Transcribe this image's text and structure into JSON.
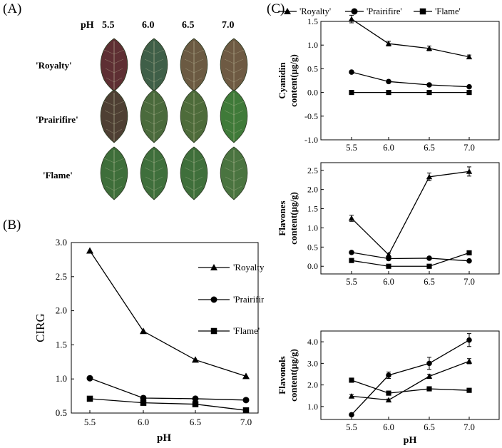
{
  "panels": {
    "a": "(A)",
    "b": "(B)",
    "c": "(C)"
  },
  "photo": {
    "ph_prefix": "pH",
    "ph_levels": [
      "5.5",
      "6.0",
      "6.5",
      "7.0"
    ],
    "cultivars": [
      "'Royalty'",
      "'Prairifire'",
      "'Flame'"
    ],
    "leaf_colors": [
      [
        "#5e2f33",
        "#3f5f48",
        "#6b5a42",
        "#6e5a43"
      ],
      [
        "#4e3f33",
        "#4a6a3c",
        "#4d6b3a",
        "#3f7a39"
      ],
      [
        "#3e6e3a",
        "#3f6f3c",
        "#3f6f3b",
        "#4a7440"
      ]
    ]
  },
  "chart_data": [
    {
      "id": "B",
      "type": "line",
      "title": "",
      "xlabel": "pH",
      "ylabel": "CIRG",
      "categories": [
        "5.5",
        "6.0",
        "6.5",
        "7.0"
      ],
      "ylim": [
        0.5,
        3.0
      ],
      "yticks": [
        "0.5",
        "1.0",
        "1.5",
        "2.0",
        "2.5",
        "3.0"
      ],
      "legend_position": "right",
      "series": [
        {
          "name": "'Royalty'",
          "marker": "triangle",
          "values": [
            2.88,
            1.7,
            1.28,
            1.04
          ]
        },
        {
          "name": "'Prairifire'",
          "marker": "circle",
          "values": [
            1.01,
            0.72,
            0.71,
            0.69
          ]
        },
        {
          "name": "'Flame'",
          "marker": "square",
          "values": [
            0.71,
            0.65,
            0.63,
            0.54
          ]
        }
      ]
    },
    {
      "id": "C-cyanidin",
      "type": "line",
      "xlabel": "",
      "ylabel_line1": "Cyanidin",
      "ylabel_line2": "content(μg/g)",
      "categories": [
        "5.5",
        "6.0",
        "6.5",
        "7.0"
      ],
      "ylim": [
        -1.0,
        1.5
      ],
      "yticks": [
        "-1.0",
        "-0.5",
        "0.0",
        "0.5",
        "1.0",
        "1.5"
      ],
      "series": [
        {
          "name": "'Royalty'",
          "marker": "triangle",
          "values": [
            1.55,
            1.03,
            0.93,
            0.75
          ],
          "errors": [
            0.08,
            0.05,
            0.05,
            0.04
          ]
        },
        {
          "name": "'Prairifire'",
          "marker": "circle",
          "values": [
            0.43,
            0.23,
            0.16,
            0.12
          ],
          "errors": [
            0.03,
            0.02,
            0.02,
            0.02
          ]
        },
        {
          "name": "'Flame'",
          "marker": "square",
          "values": [
            0.0,
            0.0,
            0.0,
            0.0
          ],
          "errors": [
            0,
            0,
            0,
            0
          ]
        }
      ]
    },
    {
      "id": "C-flavones",
      "type": "line",
      "xlabel": "",
      "ylabel_line1": "Flavones",
      "ylabel_line2": "content(μg/g)",
      "categories": [
        "5.5",
        "6.0",
        "6.5",
        "7.0"
      ],
      "ylim": [
        -0.2,
        2.7
      ],
      "yticks": [
        "0.0",
        "0.5",
        "1.0",
        "1.5",
        "2.0",
        "2.5"
      ],
      "series": [
        {
          "name": "'Royalty'",
          "marker": "triangle",
          "values": [
            1.25,
            0.3,
            2.33,
            2.47
          ],
          "errors": [
            0.08,
            0.04,
            0.1,
            0.12
          ]
        },
        {
          "name": "'Prairifire'",
          "marker": "circle",
          "values": [
            0.36,
            0.2,
            0.21,
            0.14
          ],
          "errors": [
            0.02,
            0.02,
            0.02,
            0.02
          ]
        },
        {
          "name": "'Flame'",
          "marker": "square",
          "values": [
            0.15,
            0.0,
            0.0,
            0.35
          ],
          "errors": [
            0.01,
            0,
            0,
            0.02
          ]
        }
      ]
    },
    {
      "id": "C-flavonols",
      "type": "line",
      "xlabel": "pH",
      "ylabel_line1": "Flavonols",
      "ylabel_line2": "content(μg/g)",
      "categories": [
        "5.5",
        "6.0",
        "6.5",
        "7.0"
      ],
      "ylim": [
        0.4,
        4.5
      ],
      "yticks": [
        "1.0",
        "2.0",
        "3.0",
        "4.0"
      ],
      "series": [
        {
          "name": "'Royalty'",
          "marker": "triangle",
          "values": [
            1.48,
            1.3,
            2.4,
            3.1
          ],
          "errors": [
            0.08,
            0.05,
            0.1,
            0.12
          ]
        },
        {
          "name": "'Prairifire'",
          "marker": "circle",
          "values": [
            0.62,
            2.45,
            3.0,
            4.08
          ],
          "errors": [
            0.04,
            0.15,
            0.28,
            0.3
          ]
        },
        {
          "name": "'Flame'",
          "marker": "square",
          "values": [
            2.22,
            1.62,
            1.82,
            1.75
          ],
          "errors": [
            0.04,
            0.04,
            0.04,
            0.04
          ]
        }
      ]
    }
  ]
}
